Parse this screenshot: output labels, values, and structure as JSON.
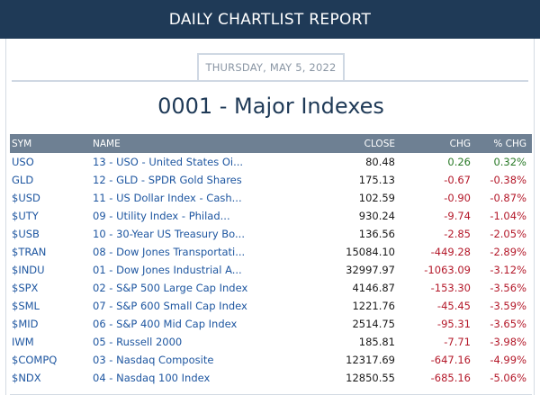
{
  "header": {
    "title": "DAILY CHARTLIST REPORT"
  },
  "report": {
    "date": "THURSDAY, MAY 5, 2022",
    "list_title": "0001 - Major Indexes"
  },
  "table": {
    "columns": {
      "sym": "SYM",
      "name": "NAME",
      "close": "CLOSE",
      "chg": "CHG",
      "pct": "% CHG"
    },
    "rows": [
      {
        "sym": "USO",
        "name": "13 - USO - United States Oi...",
        "close": "80.48",
        "chg": "0.26",
        "pct": "0.32%",
        "dir": "pos"
      },
      {
        "sym": "GLD",
        "name": "12 - GLD - SPDR Gold Shares",
        "close": "175.13",
        "chg": "-0.67",
        "pct": "-0.38%",
        "dir": "neg"
      },
      {
        "sym": "$USD",
        "name": "11 - US Dollar Index - Cash...",
        "close": "102.59",
        "chg": "-0.90",
        "pct": "-0.87%",
        "dir": "neg"
      },
      {
        "sym": "$UTY",
        "name": "09 - Utility Index - Philad...",
        "close": "930.24",
        "chg": "-9.74",
        "pct": "-1.04%",
        "dir": "neg"
      },
      {
        "sym": "$USB",
        "name": "10 - 30-Year US Treasury Bo...",
        "close": "136.56",
        "chg": "-2.85",
        "pct": "-2.05%",
        "dir": "neg"
      },
      {
        "sym": "$TRAN",
        "name": "08 - Dow Jones Transportati...",
        "close": "15084.10",
        "chg": "-449.28",
        "pct": "-2.89%",
        "dir": "neg"
      },
      {
        "sym": "$INDU",
        "name": "01 - Dow Jones Industrial A...",
        "close": "32997.97",
        "chg": "-1063.09",
        "pct": "-3.12%",
        "dir": "neg"
      },
      {
        "sym": "$SPX",
        "name": "02 - S&P 500 Large Cap Index",
        "close": "4146.87",
        "chg": "-153.30",
        "pct": "-3.56%",
        "dir": "neg"
      },
      {
        "sym": "$SML",
        "name": "07 - S&P 600 Small Cap Index",
        "close": "1221.76",
        "chg": "-45.45",
        "pct": "-3.59%",
        "dir": "neg"
      },
      {
        "sym": "$MID",
        "name": "06 - S&P 400 Mid Cap Index",
        "close": "2514.75",
        "chg": "-95.31",
        "pct": "-3.65%",
        "dir": "neg"
      },
      {
        "sym": "IWM",
        "name": "05 - Russell 2000",
        "close": "185.81",
        "chg": "-7.71",
        "pct": "-3.98%",
        "dir": "neg"
      },
      {
        "sym": "$COMPQ",
        "name": "03 - Nasdaq Composite",
        "close": "12317.69",
        "chg": "-647.16",
        "pct": "-4.99%",
        "dir": "neg"
      },
      {
        "sym": "$NDX",
        "name": "04 - Nasdaq 100 Index",
        "close": "12850.55",
        "chg": "-685.16",
        "pct": "-5.06%",
        "dir": "neg"
      }
    ]
  },
  "colors": {
    "header_bg": "#1f3a57",
    "table_header_bg": "#6e8093",
    "link": "#1e56a0",
    "negative": "#b4192a",
    "positive": "#2a7a28"
  }
}
